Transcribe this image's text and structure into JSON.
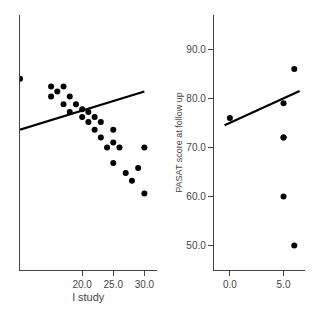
{
  "chart_data": [
    {
      "type": "scatter",
      "xlabel": "l study",
      "xlim": [
        10,
        32
      ],
      "ylim": [
        0,
        100
      ],
      "xticks": [
        {
          "value": 20.0,
          "label": "20.0"
        },
        {
          "value": 25.0,
          "label": "25.0"
        },
        {
          "value": 30.0,
          "label": "30.0"
        }
      ],
      "tick_labels": "x",
      "grid": false,
      "series": [
        {
          "type": "scatter",
          "marker": "circle",
          "color": "#000000",
          "x": [
            10,
            15,
            15,
            16,
            17,
            17,
            18,
            18,
            19,
            20,
            20,
            21,
            21,
            22,
            22,
            23,
            23,
            24,
            25,
            25,
            25,
            26,
            27,
            28,
            29,
            30,
            30
          ],
          "values": [
            75,
            72,
            68,
            70,
            72,
            65,
            68,
            62,
            65,
            60,
            63,
            58,
            62,
            55,
            60,
            52,
            58,
            48,
            55,
            50,
            42,
            48,
            38,
            35,
            40,
            30,
            48
          ]
        },
        {
          "type": "line",
          "line_style": "solid",
          "color": "#000000",
          "x": [
            10,
            30
          ],
          "values": [
            55,
            70
          ]
        }
      ]
    },
    {
      "type": "scatter",
      "ylabel": "PASAT score at follow up",
      "xlim": [
        -1.5,
        7
      ],
      "ylim": [
        45,
        97
      ],
      "xticks": [
        {
          "value": 0.0,
          "label": "0.0"
        },
        {
          "value": 5.0,
          "label": "5.0"
        }
      ],
      "yticks": [
        {
          "value": 50.0,
          "label": "50.0"
        },
        {
          "value": 60.0,
          "label": "60.0"
        },
        {
          "value": 70.0,
          "label": "70.0"
        },
        {
          "value": 80.0,
          "label": "80.0"
        },
        {
          "value": 90.0,
          "label": "90.0"
        }
      ],
      "grid": false,
      "series": [
        {
          "type": "scatter",
          "marker": "circle",
          "color": "#000000",
          "x": [
            0,
            5,
            5,
            5,
            5,
            6,
            6
          ],
          "values": [
            76,
            79,
            72,
            72,
            60,
            50,
            86
          ]
        },
        {
          "type": "line",
          "line_style": "solid",
          "color": "#000000",
          "x": [
            -0.5,
            6.5
          ],
          "values": [
            74.5,
            81.5
          ]
        }
      ]
    }
  ]
}
